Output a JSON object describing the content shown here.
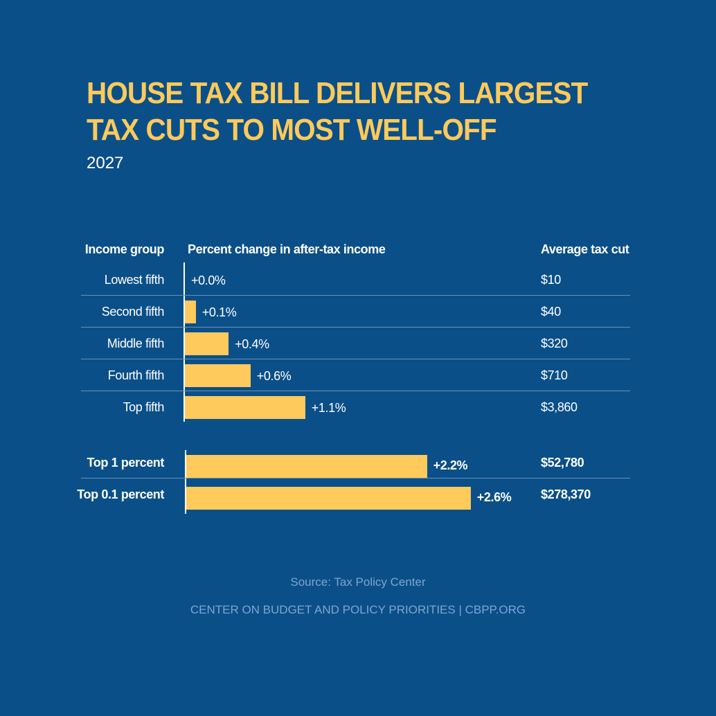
{
  "title": "House Tax Bill Delivers Largest Tax Cuts to Most Well-Off",
  "subtitle": "2027",
  "headers": {
    "group": "Income group",
    "pct": "Percent change in after-tax income",
    "cut": "Average tax cut"
  },
  "chart_data": {
    "type": "bar",
    "orientation": "horizontal",
    "title": "House Tax Bill Delivers Largest Tax Cuts to Most Well-Off",
    "subtitle": "2027",
    "categories": [
      "Lowest fifth",
      "Second fifth",
      "Middle fifth",
      "Fourth fifth",
      "Top fifth",
      "Top 1 percent",
      "Top 0.1 percent"
    ],
    "values": [
      0.0,
      0.1,
      0.4,
      0.6,
      1.1,
      2.2,
      2.6
    ],
    "value_labels": [
      "+0.0%",
      "+0.1%",
      "+0.4%",
      "+0.6%",
      "+1.1%",
      "+2.2%",
      "+2.6%"
    ],
    "average_tax_cut": [
      "$10",
      "$40",
      "$320",
      "$710",
      "$3,860",
      "$52,780",
      "$278,370"
    ],
    "bar_color": "#fdca5b",
    "groups": [
      {
        "rows": [
          0,
          1,
          2,
          3,
          4
        ]
      },
      {
        "rows": [
          5,
          6
        ],
        "emphasis": true
      }
    ]
  },
  "source": "Source: Tax Policy Center",
  "credit": "CENTER ON BUDGET AND POLICY PRIORITIES | CBPP.ORG",
  "colors": {
    "background": "#0b4f88",
    "accent": "#fdca5b",
    "footer_text": "#7ea6cf"
  }
}
